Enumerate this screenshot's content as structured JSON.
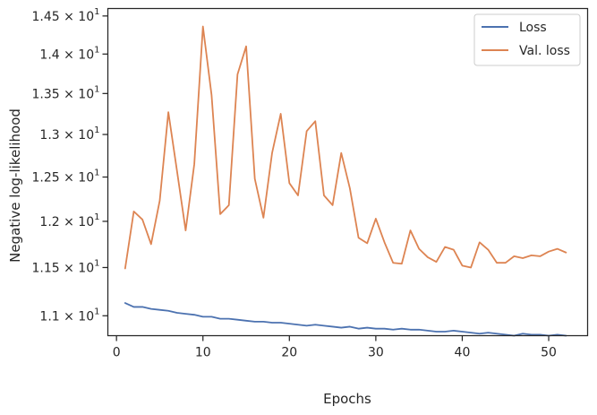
{
  "chart_data": {
    "type": "line",
    "xlabel": "Epochs",
    "ylabel": "Negative log-likelihood",
    "yscale": "log",
    "xlim": [
      -1,
      54.5
    ],
    "ylim": [
      10.8,
      14.6
    ],
    "xticks": [
      0,
      10,
      20,
      30,
      40,
      50
    ],
    "yticks": [
      {
        "value": 11.0,
        "mantissa": "1.1"
      },
      {
        "value": 11.5,
        "mantissa": "1.15"
      },
      {
        "value": 12.0,
        "mantissa": "1.2"
      },
      {
        "value": 12.5,
        "mantissa": "1.25"
      },
      {
        "value": 13.0,
        "mantissa": "1.3"
      },
      {
        "value": 13.5,
        "mantissa": "1.35"
      },
      {
        "value": 14.0,
        "mantissa": "1.4"
      },
      {
        "value": 14.5,
        "mantissa": "1.45"
      }
    ],
    "ytick_base": "10",
    "ytick_exponent": "1",
    "grid": false,
    "legend_position": "top-right",
    "x": [
      1,
      2,
      3,
      4,
      5,
      6,
      7,
      8,
      9,
      10,
      11,
      12,
      13,
      14,
      15,
      16,
      17,
      18,
      19,
      20,
      21,
      22,
      23,
      24,
      25,
      26,
      27,
      28,
      29,
      30,
      31,
      32,
      33,
      34,
      35,
      36,
      37,
      38,
      39,
      40,
      41,
      42,
      43,
      44,
      45,
      46,
      47,
      48,
      49,
      50,
      51,
      52
    ],
    "series": [
      {
        "name": "Loss",
        "color": "#4c72b0",
        "values": [
          11.13,
          11.09,
          11.09,
          11.07,
          11.06,
          11.05,
          11.03,
          11.02,
          11.01,
          10.99,
          10.99,
          10.97,
          10.97,
          10.96,
          10.95,
          10.94,
          10.94,
          10.93,
          10.93,
          10.92,
          10.91,
          10.9,
          10.91,
          10.9,
          10.89,
          10.88,
          10.89,
          10.87,
          10.88,
          10.87,
          10.87,
          10.86,
          10.87,
          10.86,
          10.86,
          10.85,
          10.84,
          10.84,
          10.85,
          10.84,
          10.83,
          10.82,
          10.83,
          10.82,
          10.81,
          10.8,
          10.82,
          10.81,
          10.81,
          10.8,
          10.81,
          10.8
        ]
      },
      {
        "name": "Val. loss",
        "color": "#dd8452",
        "values": [
          11.49,
          12.11,
          12.02,
          11.75,
          12.23,
          13.27,
          12.57,
          11.9,
          12.65,
          14.36,
          13.48,
          12.08,
          12.18,
          13.74,
          14.1,
          12.48,
          12.04,
          12.78,
          13.25,
          12.43,
          12.29,
          13.04,
          13.16,
          12.29,
          12.18,
          12.78,
          12.37,
          11.82,
          11.76,
          12.03,
          11.77,
          11.55,
          11.54,
          11.9,
          11.7,
          11.61,
          11.56,
          11.72,
          11.69,
          11.52,
          11.5,
          11.77,
          11.69,
          11.55,
          11.55,
          11.62,
          11.6,
          11.63,
          11.62,
          11.67,
          11.7,
          11.66
        ]
      }
    ]
  }
}
